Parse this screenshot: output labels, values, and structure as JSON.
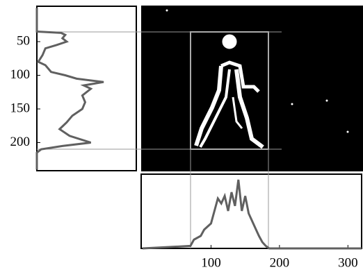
{
  "chart_data": [
    {
      "type": "line",
      "orientation": "vertical",
      "color": "#606060",
      "y": [
        0,
        35,
        37,
        40,
        45,
        50,
        55,
        60,
        70,
        80,
        85,
        95,
        100,
        105,
        110,
        115,
        120,
        130,
        140,
        150,
        160,
        170,
        180,
        190,
        200,
        205,
        210,
        215,
        240
      ],
      "values": [
        0,
        0,
        17,
        20,
        18,
        21,
        14,
        6,
        4,
        1,
        6,
        10,
        20,
        28,
        47,
        33,
        38,
        32,
        34,
        32,
        25,
        21,
        16,
        23,
        38,
        18,
        3,
        0,
        0
      ],
      "xlim": [
        0,
        70
      ],
      "ylim": [
        0,
        240
      ],
      "yticks": [
        50,
        100,
        150,
        200
      ]
    },
    {
      "type": "line",
      "orientation": "horizontal",
      "color": "#606060",
      "x": [
        0,
        70,
        75,
        85,
        90,
        100,
        105,
        110,
        115,
        120,
        125,
        130,
        135,
        140,
        145,
        150,
        155,
        160,
        165,
        170,
        175,
        180,
        185,
        320
      ],
      "values": [
        0,
        2,
        7,
        10,
        15,
        20,
        30,
        40,
        36,
        42,
        30,
        45,
        34,
        55,
        30,
        42,
        28,
        22,
        16,
        10,
        5,
        2,
        0,
        0
      ],
      "xlim": [
        0,
        320
      ],
      "ylim": [
        0,
        60
      ],
      "xticks": [
        100,
        200,
        300
      ]
    }
  ]
}
